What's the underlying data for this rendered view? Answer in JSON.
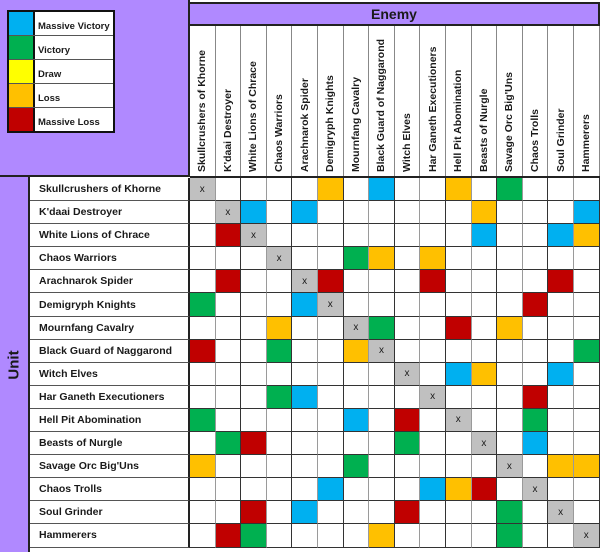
{
  "legend": [
    {
      "label": "Massive Victory",
      "color": "#00b0f0",
      "key": "MV"
    },
    {
      "label": "Victory",
      "color": "#00b050",
      "key": "V"
    },
    {
      "label": "Draw",
      "color": "#ffff00",
      "key": "D"
    },
    {
      "label": "Loss",
      "color": "#ffc000",
      "key": "L"
    },
    {
      "label": "Massive Loss",
      "color": "#c00000",
      "key": "ML"
    }
  ],
  "self_color": "#c0c0c0",
  "self_mark": "x",
  "header": {
    "enemy_label": "Enemy",
    "unit_label": "Unit"
  },
  "units": [
    "Skullcrushers of Khorne",
    "K'daai Destroyer",
    "White Lions of Chrace",
    "Chaos Warriors",
    "Arachnarok Spider",
    "Demigryph Knights",
    "Mournfang Cavalry",
    "Black Guard of Naggarond",
    "Witch Elves",
    "Har Ganeth Executioners",
    "Hell Pit Abomination",
    "Beasts of Nurgle",
    "Savage Orc Big'Uns",
    "Chaos Trolls",
    "Soul Grinder",
    "Hammerers"
  ],
  "matrix": [
    [
      "X",
      "",
      "",
      "",
      "",
      "L",
      "",
      "MV",
      "",
      "",
      "L",
      "",
      "V",
      "",
      "",
      ""
    ],
    [
      "",
      "X",
      "MV",
      "",
      "MV",
      "",
      "",
      "",
      "",
      "",
      "",
      "L",
      "",
      "",
      "",
      "MV"
    ],
    [
      "",
      "ML",
      "X",
      "",
      "",
      "",
      "",
      "",
      "",
      "",
      "",
      "MV",
      "",
      "",
      "MV",
      "L"
    ],
    [
      "",
      "",
      "",
      "X",
      "",
      "",
      "V",
      "L",
      "",
      "L",
      "",
      "",
      "",
      "",
      "",
      ""
    ],
    [
      "",
      "ML",
      "",
      "",
      "X",
      "ML",
      "",
      "",
      "",
      "ML",
      "",
      "",
      "",
      "",
      "ML",
      ""
    ],
    [
      "V",
      "",
      "",
      "",
      "MV",
      "X",
      "",
      "",
      "",
      "",
      "",
      "",
      "",
      "ML",
      "",
      ""
    ],
    [
      "",
      "",
      "",
      "L",
      "",
      "",
      "X",
      "V",
      "",
      "",
      "ML",
      "",
      "L",
      "",
      "",
      ""
    ],
    [
      "ML",
      "",
      "",
      "V",
      "",
      "",
      "L",
      "X",
      "",
      "",
      "",
      "",
      "",
      "",
      "",
      "V"
    ],
    [
      "",
      "",
      "",
      "",
      "",
      "",
      "",
      "",
      "X",
      "",
      "MV",
      "L",
      "",
      "",
      "MV",
      ""
    ],
    [
      "",
      "",
      "",
      "V",
      "MV",
      "",
      "",
      "",
      "",
      "X",
      "",
      "",
      "",
      "ML",
      "",
      ""
    ],
    [
      "V",
      "",
      "",
      "",
      "",
      "",
      "MV",
      "",
      "ML",
      "",
      "X",
      "",
      "",
      "V",
      "",
      ""
    ],
    [
      "",
      "V",
      "ML",
      "",
      "",
      "",
      "",
      "",
      "V",
      "",
      "",
      "X",
      "",
      "MV",
      "",
      ""
    ],
    [
      "L",
      "",
      "",
      "",
      "",
      "",
      "V",
      "",
      "",
      "",
      "",
      "",
      "X",
      "",
      "L",
      "L"
    ],
    [
      "",
      "",
      "",
      "",
      "",
      "MV",
      "",
      "",
      "",
      "MV",
      "L",
      "ML",
      "",
      "X",
      "",
      ""
    ],
    [
      "",
      "",
      "ML",
      "",
      "MV",
      "",
      "",
      "",
      "ML",
      "",
      "",
      "",
      "V",
      "",
      "X",
      ""
    ],
    [
      "",
      "ML",
      "V",
      "",
      "",
      "",
      "",
      "L",
      "",
      "",
      "",
      "",
      "V",
      "",
      "",
      "X"
    ]
  ]
}
